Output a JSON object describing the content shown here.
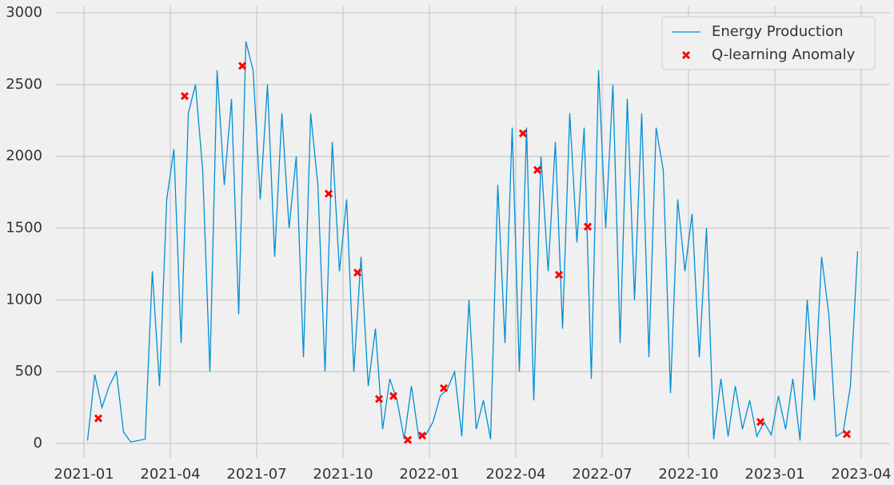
{
  "chart_data": {
    "type": "line",
    "xticks": [
      "2021-01",
      "2021-04",
      "2021-07",
      "2021-10",
      "2022-01",
      "2022-04",
      "2022-07",
      "2022-10",
      "2023-01",
      "2023-04"
    ],
    "xlim": [
      "2020-12",
      "2023-05"
    ],
    "ylim": [
      -100,
      3050
    ],
    "yticks": [
      0,
      500,
      1000,
      1500,
      2000,
      2500,
      3000
    ],
    "grid": true,
    "legend": "upper right",
    "series": [
      {
        "name": "Energy Production",
        "type": "line",
        "color": "#008fd5",
        "x": [
          "2021-01",
          "2021-01",
          "2021-01",
          "2021-01",
          "2021-02",
          "2021-02",
          "2021-02",
          "2021-02",
          "2021-03",
          "2021-03",
          "2021-03",
          "2021-03",
          "2021-04",
          "2021-04",
          "2021-04",
          "2021-04",
          "2021-05",
          "2021-05",
          "2021-05",
          "2021-05",
          "2021-06",
          "2021-06",
          "2021-06",
          "2021-06",
          "2021-07",
          "2021-07",
          "2021-07",
          "2021-07",
          "2021-08",
          "2021-08",
          "2021-08",
          "2021-08",
          "2021-09",
          "2021-09",
          "2021-09",
          "2021-09",
          "2021-10",
          "2021-10",
          "2021-10",
          "2021-10",
          "2021-11",
          "2021-11",
          "2021-11",
          "2021-11",
          "2021-12",
          "2021-12",
          "2021-12",
          "2021-12",
          "2022-01",
          "2022-01",
          "2022-01",
          "2022-01",
          "2022-02",
          "2022-02",
          "2022-02",
          "2022-02",
          "2022-03",
          "2022-03",
          "2022-03",
          "2022-03",
          "2022-04",
          "2022-04",
          "2022-04",
          "2022-04",
          "2022-05",
          "2022-05",
          "2022-05",
          "2022-05",
          "2022-06",
          "2022-06",
          "2022-06",
          "2022-06",
          "2022-07",
          "2022-07",
          "2022-07",
          "2022-07",
          "2022-08",
          "2022-08",
          "2022-08",
          "2022-08",
          "2022-09",
          "2022-09",
          "2022-09",
          "2022-09",
          "2022-10",
          "2022-10",
          "2022-10",
          "2022-10",
          "2022-11",
          "2022-11",
          "2022-11",
          "2022-11",
          "2022-12",
          "2022-12",
          "2022-12",
          "2022-12",
          "2023-01",
          "2023-01",
          "2023-01",
          "2023-01",
          "2023-02",
          "2023-02",
          "2023-02",
          "2023-02",
          "2023-03",
          "2023-03",
          "2023-03",
          "2023-03"
        ],
        "values": [
          20,
          480,
          250,
          400,
          500,
          80,
          10,
          20,
          30,
          1200,
          400,
          1700,
          2050,
          700,
          2300,
          2500,
          1900,
          500,
          2600,
          1800,
          2400,
          900,
          2800,
          2600,
          1700,
          2500,
          1300,
          2300,
          1500,
          2000,
          600,
          2300,
          1800,
          500,
          2100,
          1200,
          1700,
          500,
          1300,
          400,
          800,
          100,
          450,
          300,
          30,
          400,
          50,
          60,
          150,
          330,
          380,
          500,
          50,
          1000,
          100,
          300,
          30,
          1800,
          700,
          2200,
          500,
          2200,
          300,
          2000,
          1200,
          2100,
          800,
          2300,
          1400,
          2200,
          450,
          2600,
          1500,
          2500,
          700,
          2400,
          1000,
          2300,
          600,
          2200,
          1900,
          350,
          1700,
          1200,
          1600,
          600,
          1500,
          30,
          450,
          50,
          400,
          100,
          300,
          50,
          150,
          60,
          330,
          100,
          450,
          20,
          1000,
          300,
          1300,
          900,
          50,
          80,
          400,
          1340
        ]
      },
      {
        "name": "Q-learning Anomaly",
        "type": "scatter",
        "color": "#ff0000",
        "x": [
          "2021-01",
          "2021-04",
          "2021-06",
          "2021-09",
          "2021-10",
          "2021-11",
          "2021-11",
          "2021-12",
          "2021-12",
          "2022-01",
          "2022-04",
          "2022-04",
          "2022-05",
          "2022-06",
          "2022-12",
          "2023-03"
        ],
        "values": [
          175,
          2420,
          2630,
          1740,
          1190,
          310,
          330,
          25,
          55,
          385,
          2160,
          1905,
          1175,
          1510,
          150,
          65
        ]
      }
    ]
  }
}
